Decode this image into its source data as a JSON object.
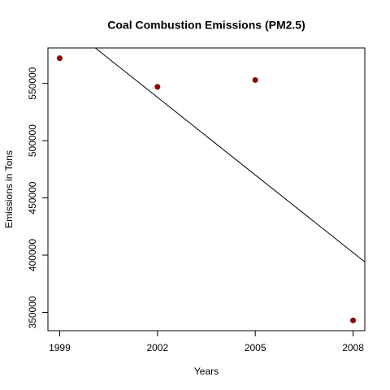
{
  "chart_data": {
    "type": "scatter",
    "title": "Coal Combustion Emissions (PM2.5)",
    "xlabel": "Years",
    "ylabel": "Emissions in Tons",
    "x": [
      1999,
      2002,
      2005,
      2008
    ],
    "values": [
      572000,
      547000,
      553000,
      343000
    ],
    "color": "#8b0000",
    "trend": {
      "x": [
        1999,
        2008
      ],
      "y": [
        605700,
        402200
      ],
      "color": "#000000"
    },
    "xlim": [
      1998.64,
      2008.36
    ],
    "ylim": [
      334000,
      581000
    ],
    "xticks": [
      1999,
      2002,
      2005,
      2008
    ],
    "yticks": [
      350000,
      400000,
      450000,
      500000,
      550000
    ],
    "grid": false
  }
}
